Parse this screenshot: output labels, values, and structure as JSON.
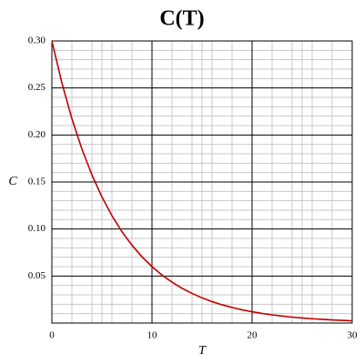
{
  "chart_data": {
    "type": "line",
    "title": "C(T)",
    "x_label": "T",
    "y_label": "C",
    "x": [
      0,
      1,
      2,
      3,
      4,
      5,
      6,
      7,
      8,
      9,
      10,
      11,
      12,
      13,
      14,
      15,
      16,
      17,
      18,
      19,
      20,
      21,
      22,
      23,
      24,
      25,
      26,
      27,
      28,
      29,
      30
    ],
    "series": [
      {
        "color": "#c00000",
        "values": [
          0.3,
          0.2554,
          0.2174,
          0.1851,
          0.1576,
          0.1341,
          0.1142,
          0.0972,
          0.0828,
          0.0705,
          0.06,
          0.0511,
          0.0435,
          0.037,
          0.0315,
          0.0268,
          0.0228,
          0.0194,
          0.0166,
          0.0141,
          0.012,
          0.0102,
          0.0087,
          0.0074,
          0.0063,
          0.0054,
          0.0046,
          0.0039,
          0.0033,
          0.0028,
          0.0024
        ]
      }
    ],
    "xlim": [
      0,
      30
    ],
    "ylim": [
      0,
      0.3
    ],
    "xticks": [
      0,
      10,
      20,
      30
    ],
    "yticks": [
      0.05,
      {
        "value": 0.1,
        "label": "0.10"
      },
      0.15,
      {
        "value": 0.2,
        "label": "0.20"
      },
      0.25,
      {
        "value": 0.3,
        "label": "0.30"
      }
    ],
    "x_minor_ticks": [
      2,
      4,
      5,
      6,
      8,
      12,
      14,
      15,
      16,
      18,
      22,
      24,
      25,
      26,
      28
    ],
    "y_minor_ticks": [
      0.01,
      0.02,
      0.03,
      0.04,
      0.06,
      0.07,
      0.08,
      0.09,
      0.11,
      0.12,
      0.13,
      0.14,
      0.16,
      0.17,
      0.18,
      0.19,
      0.21,
      0.22,
      0.23,
      0.24,
      0.26,
      0.27,
      0.28,
      0.29
    ],
    "grid": true
  }
}
